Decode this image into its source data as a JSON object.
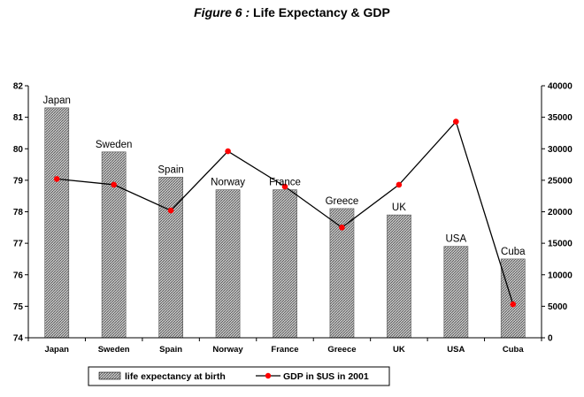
{
  "chart_data": {
    "type": "bar",
    "title_prefix": "Figure 6 :",
    "title": "Life Expectancy & GDP",
    "categories": [
      "Japan",
      "Sweden",
      "Spain",
      "Norway",
      "France",
      "Greece",
      "UK",
      "USA",
      "Cuba"
    ],
    "series": [
      {
        "name": "life expectancy at birth",
        "type": "bar",
        "axis": "left",
        "values": [
          81.3,
          79.9,
          79.1,
          78.7,
          78.7,
          78.1,
          77.9,
          76.9,
          76.5
        ]
      },
      {
        "name": "GDP in $US in 2001",
        "type": "line",
        "axis": "right",
        "values": [
          25200,
          24300,
          20200,
          29600,
          24000,
          17500,
          24300,
          34300,
          5300
        ]
      }
    ],
    "ylim_left": [
      74,
      82
    ],
    "yticks_left": [
      "74",
      "75",
      "76",
      "77",
      "78",
      "79",
      "80",
      "81",
      "82"
    ],
    "ylim_right": [
      0,
      40000
    ],
    "yticks_right": [
      "0",
      "5000",
      "10000",
      "15000",
      "20000",
      "25000",
      "30000",
      "35000",
      "40000"
    ],
    "grid": false,
    "legend": "bottom",
    "colors": {
      "bar_fill": "#9a9a9a",
      "line": "#000000",
      "marker": "#ff0000"
    }
  }
}
